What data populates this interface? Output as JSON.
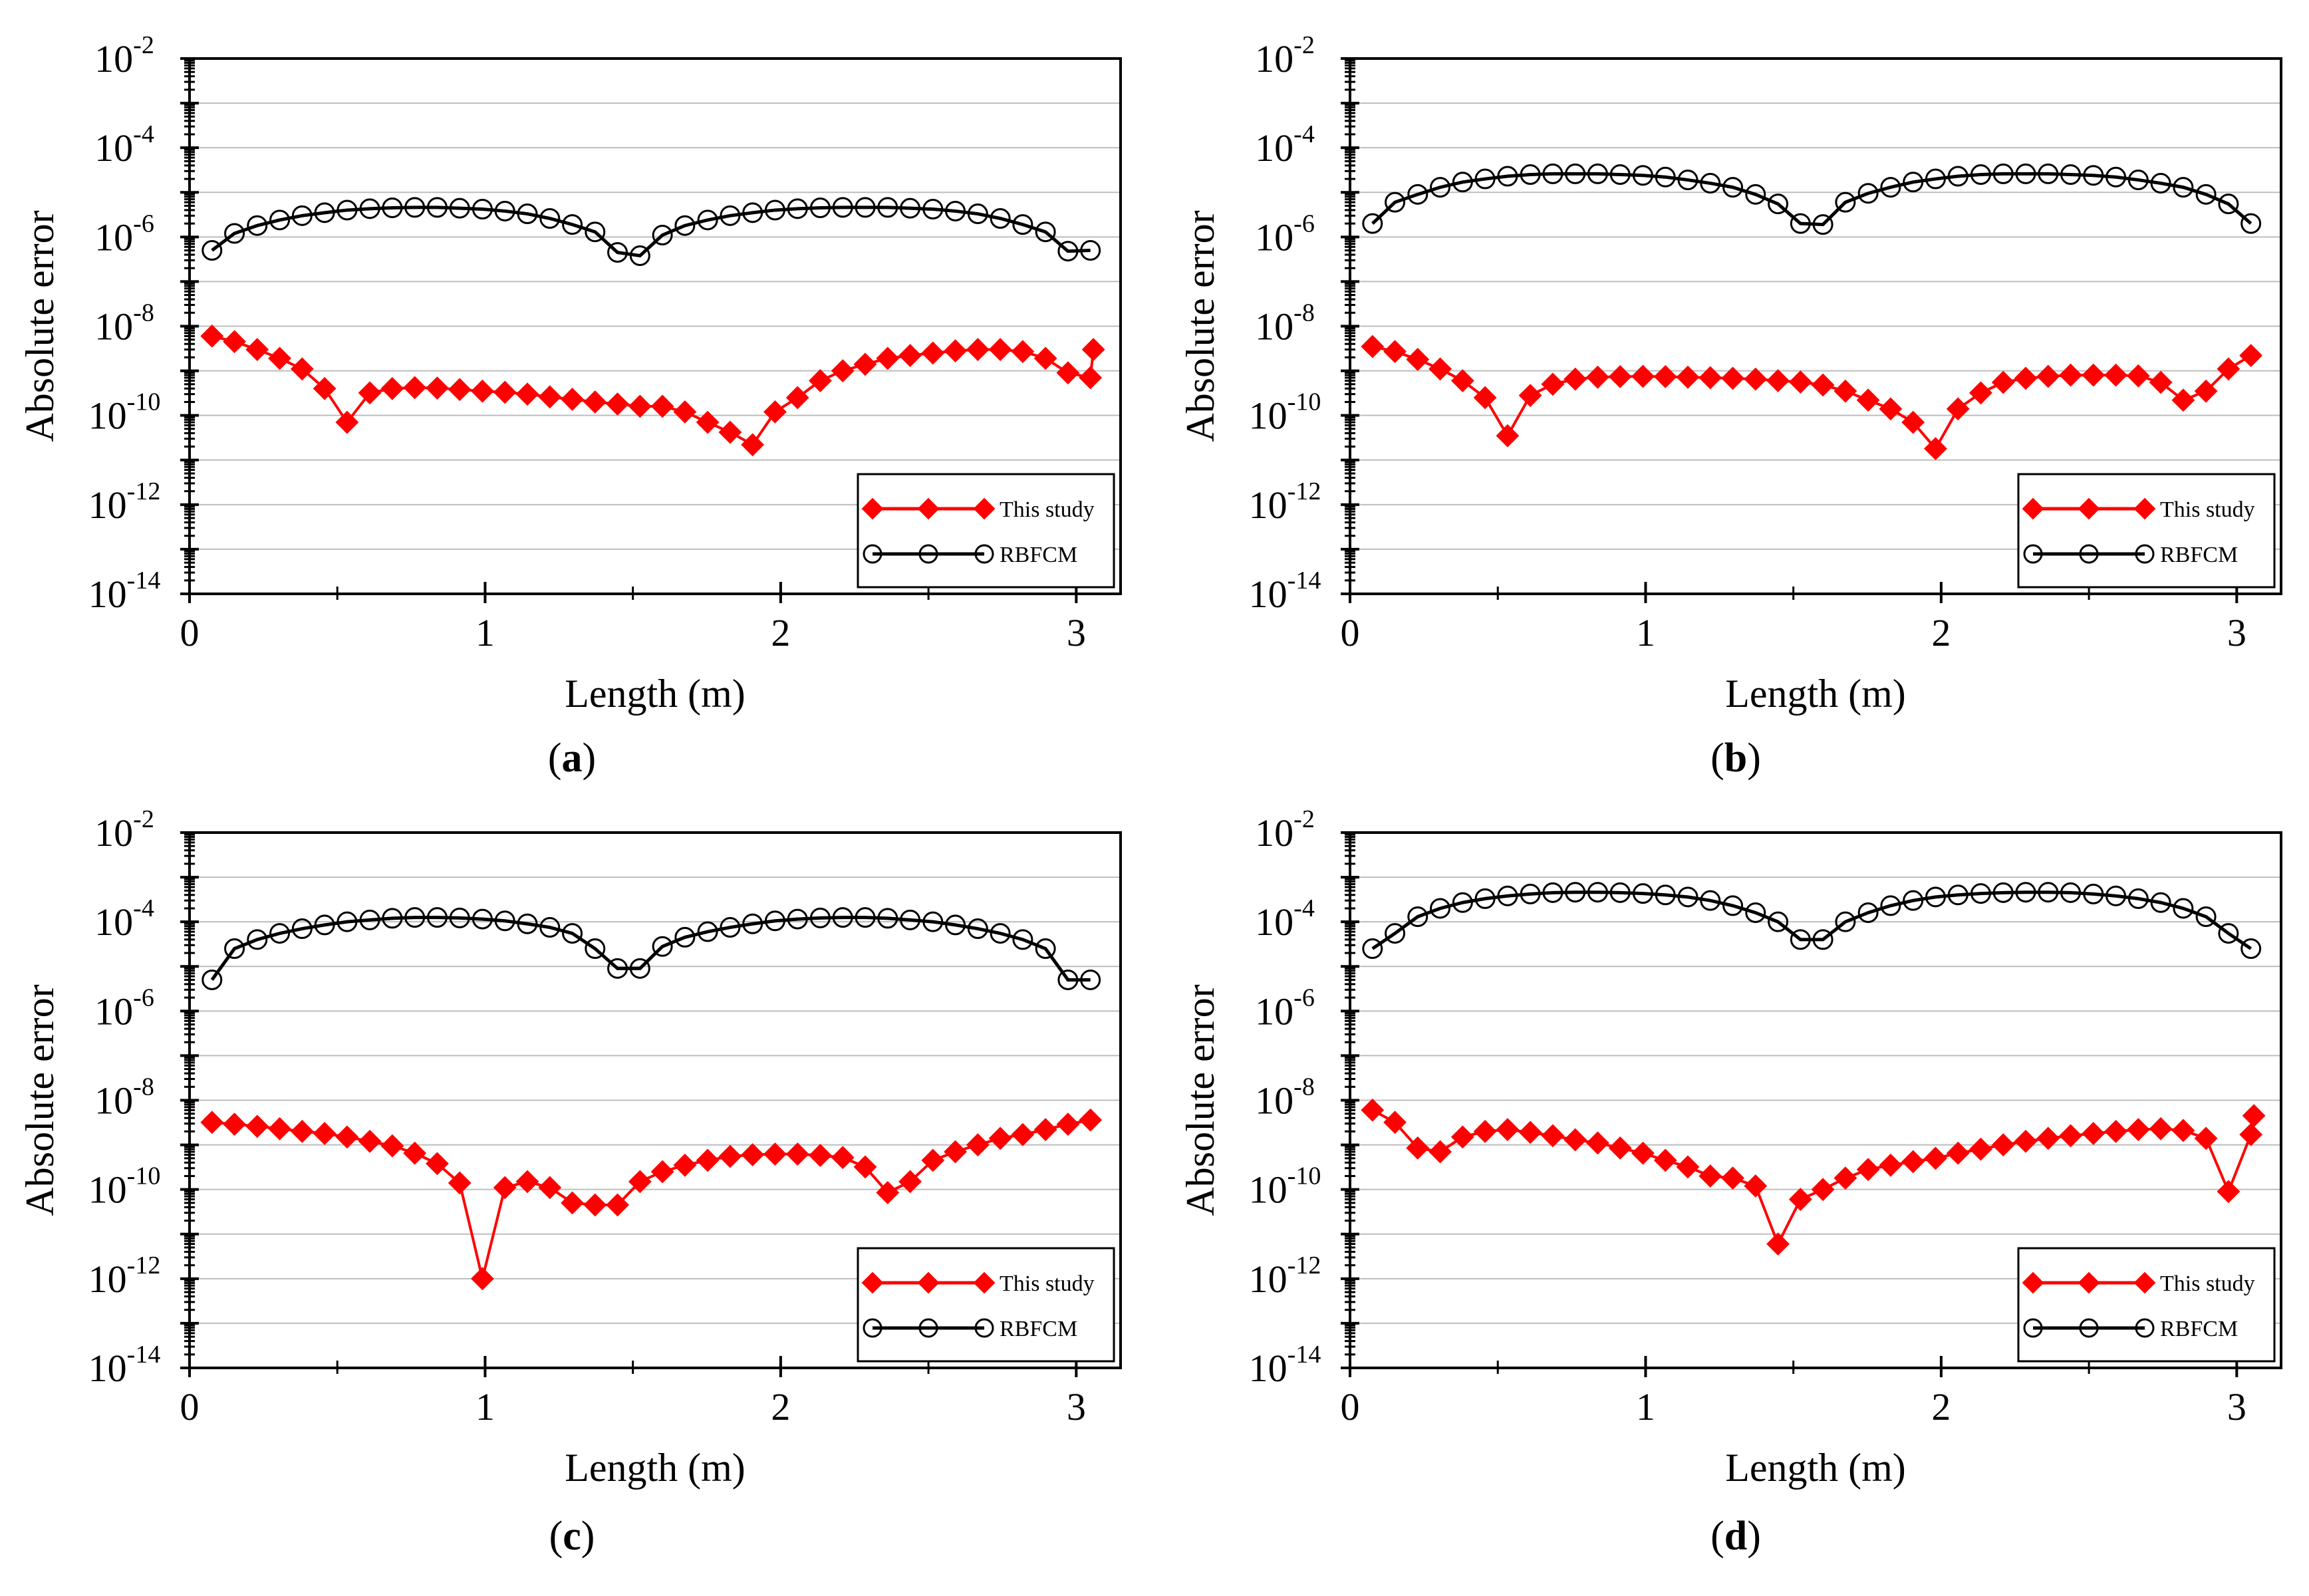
{
  "figure": {
    "x_label": "Length (m)",
    "y_label": "Absolute error",
    "legend": [
      "This study",
      "RBFCM"
    ],
    "x_ticks": [
      "0",
      "1",
      "2",
      "3"
    ],
    "y_ticks": [
      {
        "base": "10",
        "exp": "-2"
      },
      {
        "base": "10",
        "exp": "-4"
      },
      {
        "base": "10",
        "exp": "-6"
      },
      {
        "base": "10",
        "exp": "-8"
      },
      {
        "base": "10",
        "exp": "-10"
      },
      {
        "base": "10",
        "exp": "-12"
      },
      {
        "base": "10",
        "exp": "-14"
      }
    ],
    "series_colors": {
      "this_study": "#ff0000",
      "rbfcm": "#000000"
    }
  },
  "chart_data": [
    {
      "type": "line",
      "panel": "a",
      "caption_letter": "a",
      "title": "",
      "xlabel": "Length (m)",
      "ylabel": "Absolute error",
      "xlim": [
        0,
        3.15
      ],
      "ylim": [
        1e-14,
        0.01
      ],
      "yscale": "log",
      "grid": "horizontal",
      "legend_position": "lower-right",
      "x": [
        0.076,
        0.152,
        0.229,
        0.305,
        0.381,
        0.457,
        0.533,
        0.61,
        0.686,
        0.762,
        0.838,
        0.914,
        0.991,
        1.067,
        1.143,
        1.219,
        1.295,
        1.372,
        1.448,
        1.524,
        1.6,
        1.676,
        1.753,
        1.829,
        1.905,
        1.981,
        2.057,
        2.134,
        2.21,
        2.286,
        2.362,
        2.438,
        2.515,
        2.591,
        2.667,
        2.743,
        2.819,
        2.896,
        2.972,
        3.048
      ],
      "series": [
        {
          "name": "This study",
          "values": [
            6e-09,
            4.5e-09,
            3e-09,
            1.9e-09,
            1.1e-09,
            4e-10,
            7e-11,
            3.2e-10,
            4e-10,
            4.2e-10,
            4.1e-10,
            3.8e-10,
            3.5e-10,
            3.3e-10,
            3e-10,
            2.6e-10,
            2.3e-10,
            2e-10,
            1.8e-10,
            1.6e-10,
            1.6e-10,
            1.2e-10,
            7e-11,
            4.2e-11,
            2.2e-11,
            1.2e-10,
            2.5e-10,
            6e-10,
            1e-09,
            1.4e-09,
            1.9e-09,
            2.2e-09,
            2.5e-09,
            2.8e-09,
            3e-09,
            3e-09,
            2.7e-09,
            1.9e-09,
            9e-10,
            7e-10
          ]
        },
        {
          "name": "RBFCM",
          "values": [
            5e-07,
            1.2e-06,
            1.8e-06,
            2.4e-06,
            3e-06,
            3.5e-06,
            4e-06,
            4.3e-06,
            4.5e-06,
            4.6e-06,
            4.6e-06,
            4.4e-06,
            4.2e-06,
            3.8e-06,
            3.3e-06,
            2.6e-06,
            1.9e-06,
            1.3e-06,
            4.5e-07,
            3.8e-07,
            1.1e-06,
            1.8e-06,
            2.4e-06,
            3e-06,
            3.5e-06,
            4e-06,
            4.3e-06,
            4.5e-06,
            4.6e-06,
            4.6e-06,
            4.6e-06,
            4.4e-06,
            4.2e-06,
            3.8e-06,
            3.3e-06,
            2.6e-06,
            1.9e-06,
            1.3e-06,
            4.8e-07,
            5e-07
          ]
        }
      ],
      "extra_points": {
        "This study": [
          [
            3.058,
            3e-09
          ]
        ]
      }
    },
    {
      "type": "line",
      "panel": "b",
      "caption_letter": "b",
      "title": "",
      "xlabel": "Length (m)",
      "ylabel": "Absolute error",
      "xlim": [
        0,
        3.15
      ],
      "ylim": [
        1e-14,
        0.01
      ],
      "yscale": "log",
      "grid": "horizontal",
      "legend_position": "lower-right",
      "x": [
        0.076,
        0.152,
        0.229,
        0.305,
        0.381,
        0.457,
        0.533,
        0.61,
        0.686,
        0.762,
        0.838,
        0.914,
        0.991,
        1.067,
        1.143,
        1.219,
        1.295,
        1.372,
        1.448,
        1.524,
        1.6,
        1.676,
        1.753,
        1.829,
        1.905,
        1.981,
        2.057,
        2.134,
        2.21,
        2.286,
        2.362,
        2.438,
        2.515,
        2.591,
        2.667,
        2.743,
        2.819,
        2.896,
        2.972,
        3.048
      ],
      "series": [
        {
          "name": "This study",
          "values": [
            3.5e-09,
            2.7e-09,
            1.8e-09,
            1.1e-09,
            6e-10,
            2.5e-10,
            3.5e-11,
            2.8e-10,
            5e-10,
            6.5e-10,
            7.2e-10,
            7.4e-10,
            7.5e-10,
            7.4e-10,
            7.2e-10,
            7e-10,
            6.8e-10,
            6.5e-10,
            6e-10,
            5.6e-10,
            4.8e-10,
            3.5e-10,
            2.2e-10,
            1.4e-10,
            7e-11,
            1.8e-11,
            1.4e-10,
            3.2e-10,
            5.5e-10,
            6.8e-10,
            7.5e-10,
            8e-10,
            8e-10,
            8e-10,
            7.7e-10,
            5.5e-10,
            2.2e-10,
            3.5e-10,
            1.1e-09,
            2.2e-09
          ]
        },
        {
          "name": "RBFCM",
          "values": [
            2e-06,
            6e-06,
            9e-06,
            1.3e-05,
            1.7e-05,
            2e-05,
            2.3e-05,
            2.5e-05,
            2.6e-05,
            2.6e-05,
            2.6e-05,
            2.5e-05,
            2.4e-05,
            2.2e-05,
            1.9e-05,
            1.6e-05,
            1.3e-05,
            9e-06,
            5.5e-06,
            2e-06,
            1.9e-06,
            6e-06,
            9.5e-06,
            1.3e-05,
            1.7e-05,
            2e-05,
            2.3e-05,
            2.5e-05,
            2.6e-05,
            2.6e-05,
            2.6e-05,
            2.5e-05,
            2.4e-05,
            2.2e-05,
            1.9e-05,
            1.6e-05,
            1.3e-05,
            9e-06,
            5.5e-06,
            2e-06
          ]
        }
      ]
    },
    {
      "type": "line",
      "panel": "c",
      "caption_letter": "c",
      "title": "",
      "xlabel": "Length (m)",
      "ylabel": "Absolute error",
      "xlim": [
        0,
        3.15
      ],
      "ylim": [
        1e-14,
        0.01
      ],
      "yscale": "log",
      "grid": "horizontal",
      "legend_position": "lower-right",
      "x": [
        0.076,
        0.152,
        0.229,
        0.305,
        0.381,
        0.457,
        0.533,
        0.61,
        0.686,
        0.762,
        0.838,
        0.914,
        0.991,
        1.067,
        1.143,
        1.219,
        1.295,
        1.372,
        1.448,
        1.524,
        1.6,
        1.676,
        1.753,
        1.829,
        1.905,
        1.981,
        2.057,
        2.134,
        2.21,
        2.286,
        2.362,
        2.438,
        2.515,
        2.591,
        2.667,
        2.743,
        2.819,
        2.896,
        2.972,
        3.048
      ],
      "series": [
        {
          "name": "This study",
          "values": [
            3.2e-09,
            2.9e-09,
            2.6e-09,
            2.3e-09,
            2e-09,
            1.8e-09,
            1.5e-09,
            1.2e-09,
            9.5e-10,
            6.5e-10,
            3.8e-10,
            1.4e-10,
            1e-12,
            1.1e-10,
            1.5e-10,
            1.1e-10,
            5e-11,
            4.5e-11,
            4.5e-11,
            1.5e-10,
            2.5e-10,
            3.5e-10,
            4.5e-10,
            5.5e-10,
            6e-10,
            6.2e-10,
            6.2e-10,
            5.8e-10,
            5.2e-10,
            3.2e-10,
            8.5e-11,
            1.5e-10,
            4.5e-10,
            7e-10,
            1e-09,
            1.4e-09,
            1.7e-09,
            2.2e-09,
            2.9e-09,
            3.6e-09
          ]
        },
        {
          "name": "RBFCM",
          "values": [
            5e-06,
            2.5e-05,
            4e-05,
            5.5e-05,
            7e-05,
            8.5e-05,
            0.0001,
            0.00011,
            0.00012,
            0.000125,
            0.000125,
            0.000122,
            0.000115,
            0.000105,
            9e-05,
            7.5e-05,
            5.5e-05,
            2.5e-05,
            9e-06,
            9e-06,
            2.8e-05,
            4.5e-05,
            6e-05,
            7.5e-05,
            9e-05,
            0.000105,
            0.000115,
            0.000122,
            0.000125,
            0.000125,
            0.00012,
            0.00011,
            0.0001,
            8.5e-05,
            7e-05,
            5.5e-05,
            4e-05,
            2.5e-05,
            5e-06,
            5e-06
          ]
        }
      ]
    },
    {
      "type": "line",
      "panel": "d",
      "caption_letter": "d",
      "title": "",
      "xlabel": "Length (m)",
      "ylabel": "Absolute error",
      "xlim": [
        0,
        3.15
      ],
      "ylim": [
        1e-14,
        0.01
      ],
      "yscale": "log",
      "grid": "horizontal",
      "legend_position": "lower-right",
      "x": [
        0.076,
        0.152,
        0.229,
        0.305,
        0.381,
        0.457,
        0.533,
        0.61,
        0.686,
        0.762,
        0.838,
        0.914,
        0.991,
        1.067,
        1.143,
        1.219,
        1.295,
        1.372,
        1.448,
        1.524,
        1.6,
        1.676,
        1.753,
        1.829,
        1.905,
        1.981,
        2.057,
        2.134,
        2.21,
        2.286,
        2.362,
        2.438,
        2.515,
        2.591,
        2.667,
        2.743,
        2.819,
        2.896,
        2.972,
        3.048
      ],
      "series": [
        {
          "name": "This study",
          "values": [
            6e-09,
            3.2e-09,
            8.5e-10,
            7e-10,
            1.5e-09,
            2e-09,
            2.2e-09,
            1.9e-09,
            1.6e-09,
            1.3e-09,
            1.1e-09,
            8.5e-10,
            6.5e-10,
            4.5e-10,
            3.2e-10,
            2e-10,
            1.8e-10,
            1.2e-10,
            6e-12,
            6e-11,
            1e-10,
            1.8e-10,
            2.8e-10,
            3.5e-10,
            4.2e-10,
            5e-10,
            6.5e-10,
            8e-10,
            1e-09,
            1.2e-09,
            1.4e-09,
            1.6e-09,
            1.8e-09,
            2e-09,
            2.2e-09,
            2.3e-09,
            2.1e-09,
            1.4e-09,
            9e-11,
            1.7e-09
          ]
        },
        {
          "name": "RBFCM",
          "values": [
            2.5e-05,
            5.5e-05,
            0.00013,
            0.0002,
            0.00027,
            0.00033,
            0.00038,
            0.00042,
            0.00045,
            0.00046,
            0.00046,
            0.00045,
            0.00043,
            0.0004,
            0.00036,
            0.0003,
            0.00023,
            0.00016,
            0.0001,
            4e-05,
            4e-05,
            0.0001,
            0.00016,
            0.00023,
            0.0003,
            0.00036,
            0.0004,
            0.00043,
            0.00045,
            0.00046,
            0.00046,
            0.00045,
            0.00042,
            0.00038,
            0.00033,
            0.00027,
            0.0002,
            0.00013,
            5.5e-05,
            2.5e-05
          ]
        }
      ],
      "extra_points": {
        "This study": [
          [
            3.058,
            4.5e-09
          ]
        ]
      }
    }
  ]
}
